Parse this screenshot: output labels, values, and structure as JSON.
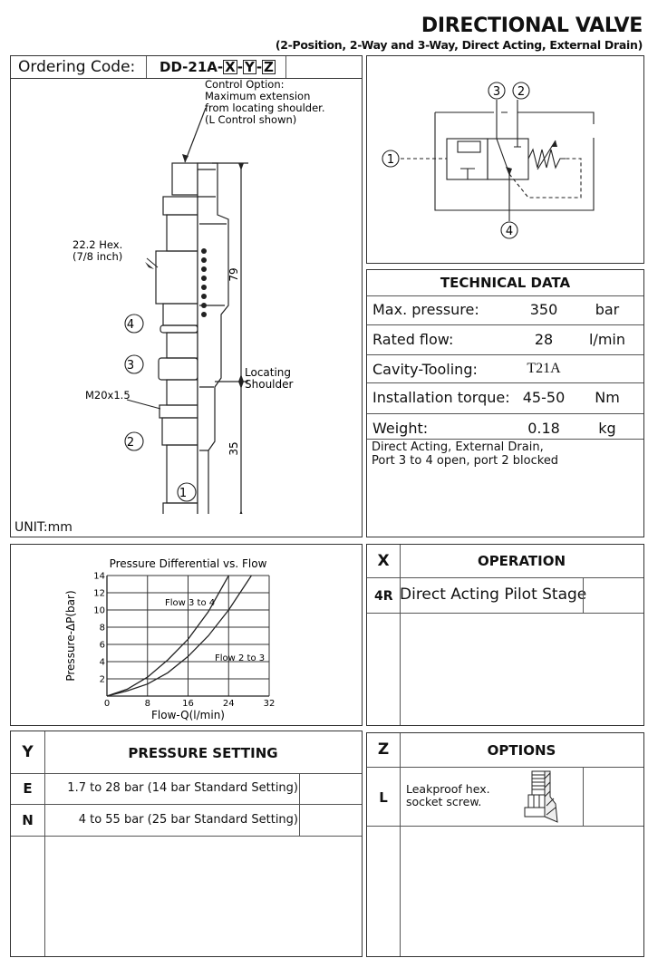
{
  "header": {
    "title": "DIRECTIONAL VALVE",
    "subtitle": "(2-Position, 2-Way and 3-Way, Direct Acting, External Drain)"
  },
  "ordering": {
    "label": "Ordering Code:",
    "prefix": "DD-21A-",
    "x": "X",
    "y": "Y",
    "z": "Z",
    "sep": "-"
  },
  "drawing": {
    "control_note": [
      "Control Option:",
      "Maximum extension",
      "from locating shoulder.",
      "(L Control shown)"
    ],
    "hex_note": [
      "22.2 Hex.",
      "(7/8 inch)"
    ],
    "thread": "M20x1.5",
    "locating": [
      "Locating",
      "Shoulder"
    ],
    "dim_79": "79",
    "dim_35": "35",
    "ports": [
      "1",
      "2",
      "3",
      "4"
    ],
    "unit": "UNIT:mm"
  },
  "symbol": {
    "ports": [
      "1",
      "2",
      "3",
      "4"
    ]
  },
  "technical_data": {
    "title": "TECHNICAL DATA",
    "rows": [
      {
        "label": "Max. pressure:",
        "value": "350",
        "unit": "bar"
      },
      {
        "label": "Rated flow:",
        "value": "28",
        "unit": "l/min"
      },
      {
        "label": "Cavity-Tooling:",
        "value": "T21A",
        "unit": ""
      },
      {
        "label": "Installation torque:",
        "value": "45-50",
        "unit": "Nm"
      },
      {
        "label": "Weight:",
        "value": "0.18",
        "unit": "kg"
      }
    ],
    "note": [
      "Direct Acting, External Drain,",
      "Port 3 to 4 open, port 2 blocked"
    ]
  },
  "chart_data": {
    "type": "line",
    "title": "Pressure Differential vs. Flow",
    "xlabel": "Flow-Q(l/min)",
    "ylabel": "Pressure-ΔP(bar)",
    "xlim": [
      0,
      32
    ],
    "ylim": [
      0,
      14
    ],
    "xticks": [
      "0",
      "8",
      "16",
      "24",
      "32"
    ],
    "yticks": [
      "2",
      "4",
      "6",
      "8",
      "10",
      "12",
      "14"
    ],
    "grid": true,
    "series": [
      {
        "name": "Flow 3 to 4",
        "x": [
          0,
          4,
          8,
          12,
          16,
          20,
          24
        ],
        "y": [
          0,
          0.8,
          2.2,
          4.2,
          6.6,
          9.8,
          14
        ]
      },
      {
        "name": "Flow 2 to 3",
        "x": [
          0,
          4,
          8,
          12,
          16,
          20,
          24,
          28.5
        ],
        "y": [
          0,
          0.6,
          1.4,
          2.7,
          4.6,
          7,
          10,
          14
        ]
      }
    ]
  },
  "operation": {
    "code_header": "X",
    "title": "OPERATION",
    "rows": [
      {
        "code": "4R",
        "desc": "Direct Acting Pilot Stage"
      }
    ]
  },
  "pressure_setting": {
    "code_header": "Y",
    "title": "PRESSURE SETTING",
    "rows": [
      {
        "code": "E",
        "desc": "1.7 to 28 bar  (14 bar Standard Setting)"
      },
      {
        "code": "N",
        "desc": "4 to 55 bar  (25 bar Standard Setting)"
      }
    ]
  },
  "options": {
    "code_header": "Z",
    "title": "OPTIONS",
    "rows": [
      {
        "code": "L",
        "desc": [
          "Leakproof hex.",
          "socket screw."
        ]
      }
    ]
  }
}
